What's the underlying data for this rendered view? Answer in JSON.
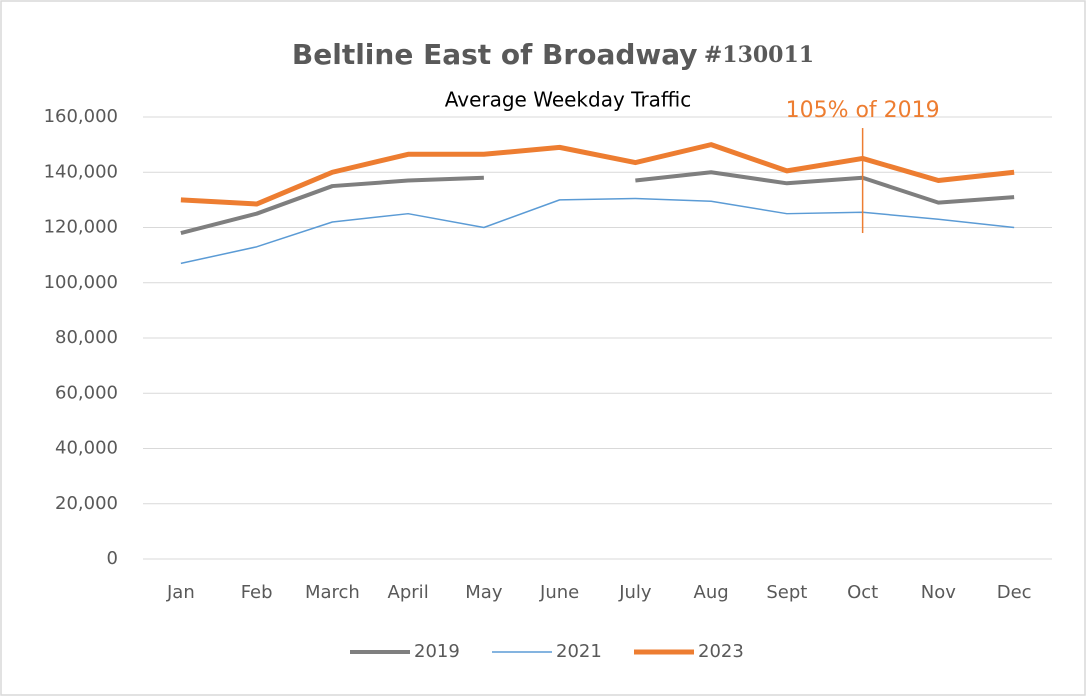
{
  "chart_data": {
    "type": "line",
    "title": "Beltline East of Broadway",
    "title_id": "#130011",
    "subtitle": "Average Weekday Traffic",
    "categories": [
      "Jan",
      "Feb",
      "March",
      "April",
      "May",
      "June",
      "July",
      "Aug",
      "Sept",
      "Oct",
      "Nov",
      "Dec"
    ],
    "series": [
      {
        "name": "2019",
        "color": "#7f7f7f",
        "width": 4,
        "values": [
          118000,
          125000,
          135000,
          137000,
          138000,
          null,
          137000,
          140000,
          136000,
          138000,
          129000,
          131000
        ]
      },
      {
        "name": "2021",
        "color": "#5b9bd5",
        "width": 1.5,
        "values": [
          107000,
          113000,
          122000,
          125000,
          120000,
          130000,
          130500,
          129500,
          125000,
          125500,
          123000,
          120000
        ]
      },
      {
        "name": "2023",
        "color": "#ed7d31",
        "width": 5,
        "values": [
          130000,
          128500,
          140000,
          146500,
          146500,
          149000,
          143500,
          150000,
          140500,
          145000,
          137000,
          140000
        ]
      }
    ],
    "ylim": [
      0,
      160000
    ],
    "yticks": [
      {
        "value": 0,
        "label": "0"
      },
      {
        "value": 20000,
        "label": "20,000"
      },
      {
        "value": 40000,
        "label": "40,000"
      },
      {
        "value": 60000,
        "label": "60,000"
      },
      {
        "value": 80000,
        "label": "80,000"
      },
      {
        "value": 100000,
        "label": "100,000"
      },
      {
        "value": 120000,
        "label": "120,000"
      },
      {
        "value": 140000,
        "label": "140,000"
      },
      {
        "value": 160000,
        "label": "160,000"
      }
    ],
    "grid": true,
    "legend": "bottom",
    "annotation": {
      "text": "105% of 2019",
      "x": "Oct",
      "y_range": [
        118000,
        156000
      ],
      "color": "#ed7d31"
    }
  }
}
